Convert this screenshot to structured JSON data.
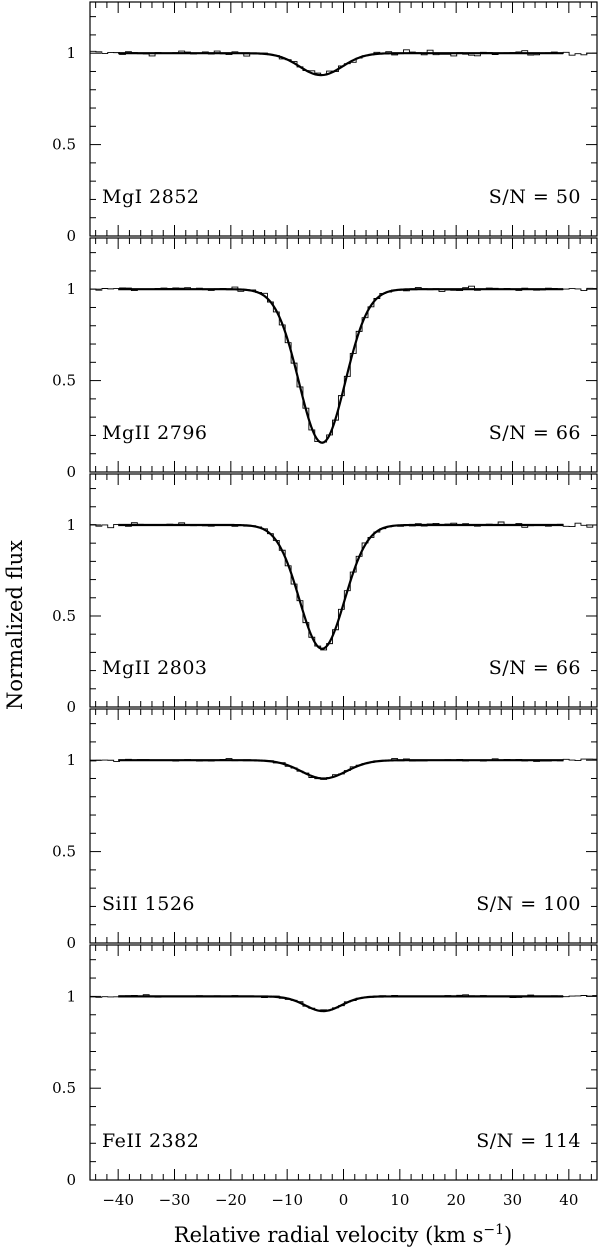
{
  "chart_data": {
    "type": "line",
    "ylabel": "Normalized flux",
    "xlabel": "Relative radial velocity (km s",
    "xlabel_unit_sup": "−1",
    "xlabel_close": ")",
    "xlim": [
      -45,
      45
    ],
    "ylim": [
      0,
      1.28
    ],
    "xticks": [
      -40,
      -30,
      -20,
      -10,
      0,
      10,
      20,
      30,
      40
    ],
    "yticks": [
      0,
      0.5,
      1
    ],
    "panels": [
      {
        "label": "MgI 2852",
        "snr_label": "S/N = 50",
        "center": -4.0,
        "min_flux": 0.88,
        "sigma": 3.8,
        "noise": 0.013
      },
      {
        "label": "MgII 2796",
        "snr_label": "S/N = 66",
        "center": -3.8,
        "min_flux": 0.16,
        "sigma": 4.1,
        "noise": 0.01
      },
      {
        "label": "MgII 2803",
        "snr_label": "S/N = 66",
        "center": -3.8,
        "min_flux": 0.32,
        "sigma": 4.0,
        "noise": 0.01
      },
      {
        "label": "SiII 1526",
        "snr_label": "S/N = 100",
        "center": -3.5,
        "min_flux": 0.9,
        "sigma": 4.0,
        "noise": 0.007
      },
      {
        "label": "FeII 2382",
        "snr_label": "S/N = 114",
        "center": -3.6,
        "min_flux": 0.92,
        "sigma": 3.2,
        "noise": 0.006
      }
    ]
  }
}
